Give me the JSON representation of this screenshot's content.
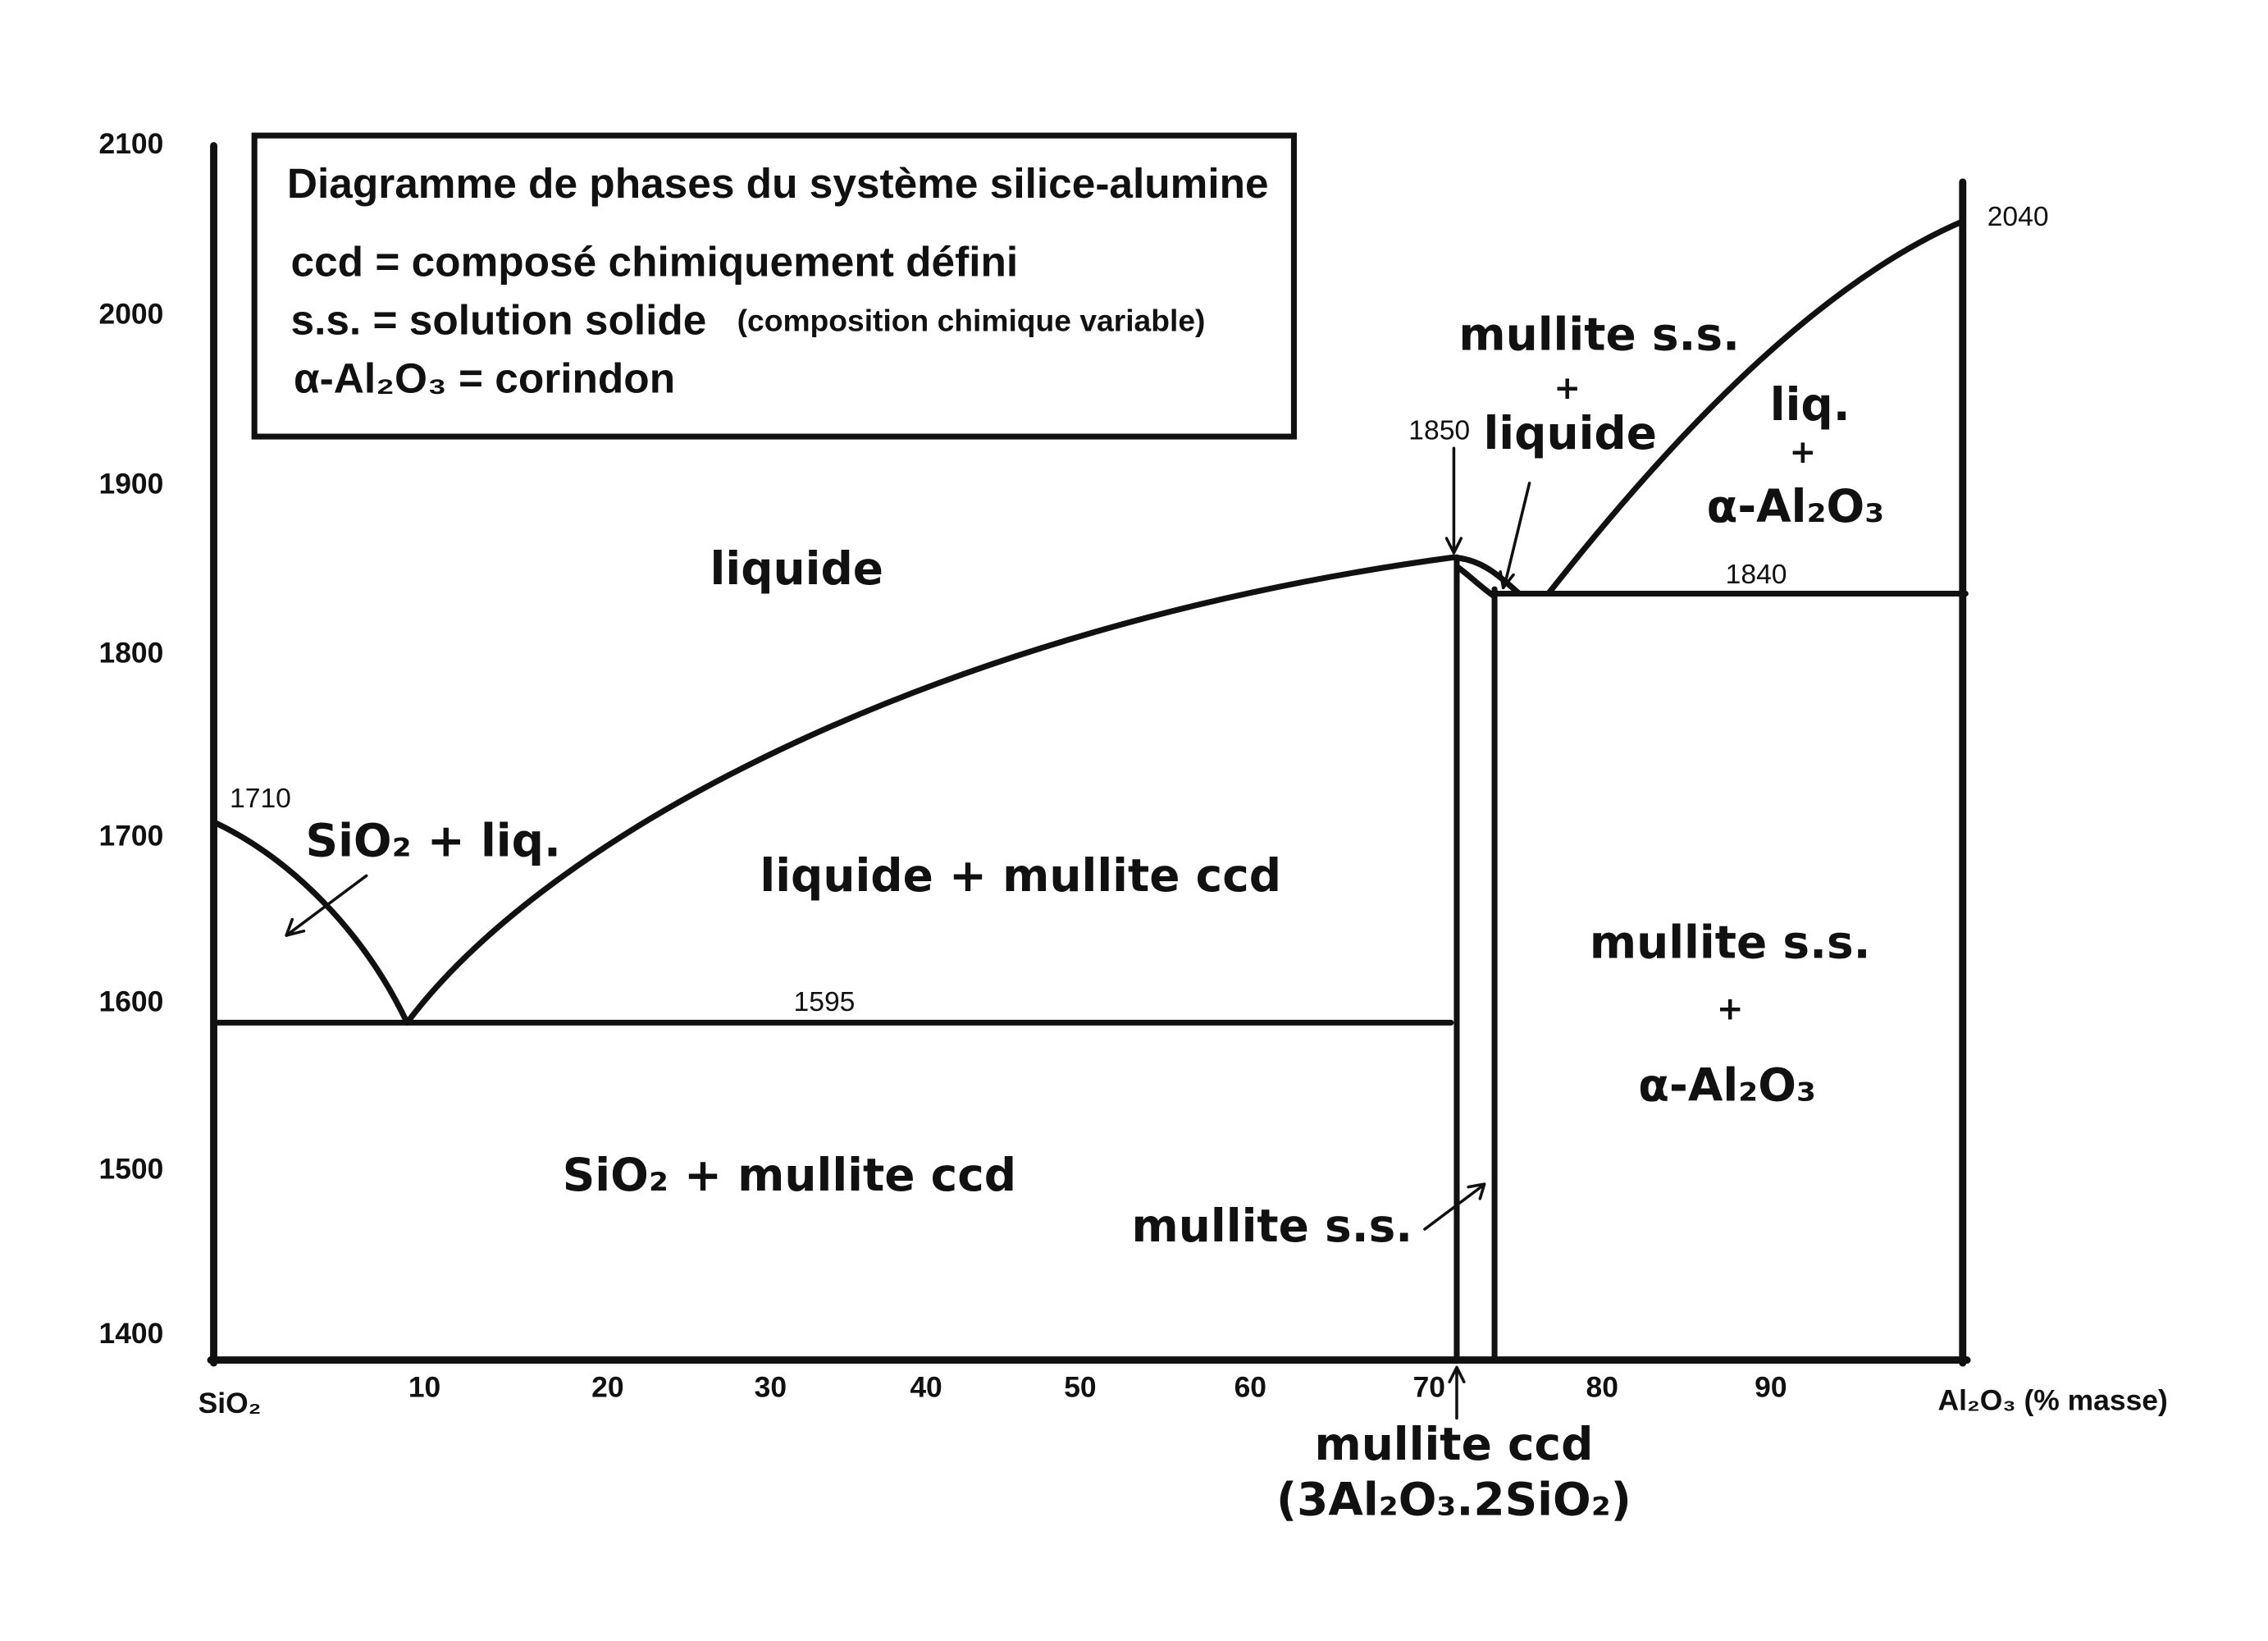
{
  "legend_box": {
    "title": "Diagramme de phases du système silice-alumine",
    "lines": [
      "ccd = composé chimiquement défini",
      "s.s. = solution solide",
      "(composition chimique variable)",
      "α-Al₂O₃ = corindon"
    ]
  },
  "y_axis": {
    "ticks": [
      "2100",
      "2000",
      "1900",
      "1800",
      "1700",
      "1600",
      "1500",
      "1400"
    ]
  },
  "x_axis": {
    "start": "SiO₂",
    "ticks": [
      "10",
      "20",
      "30",
      "40",
      "50",
      "60",
      "70",
      "80",
      "90"
    ],
    "end": "Al₂O₃ (% masse)"
  },
  "point_labels": [
    "1710",
    "1595",
    "1850",
    "1840",
    "2040"
  ],
  "regions": {
    "liquid": "liquide",
    "sio2_liq": "SiO₂ + liq.",
    "liq_mullite": "liquide + mullite ccd",
    "sio2_mullite": "SiO₂ + mullite ccd",
    "mullite_ss": "mullite s.s.",
    "mullite_ss_liquid": [
      "mullite s.s.",
      "+",
      "liquide"
    ],
    "liq_alumina": [
      "liq.",
      "+",
      "α-Al₂O₃"
    ],
    "mullite_ss_alumina": [
      "mullite s.s.",
      "+",
      "α-Al₂O₃"
    ]
  },
  "compound": {
    "name": "mullite ccd",
    "formula": "(3Al₂O₃.2SiO₂)"
  }
}
